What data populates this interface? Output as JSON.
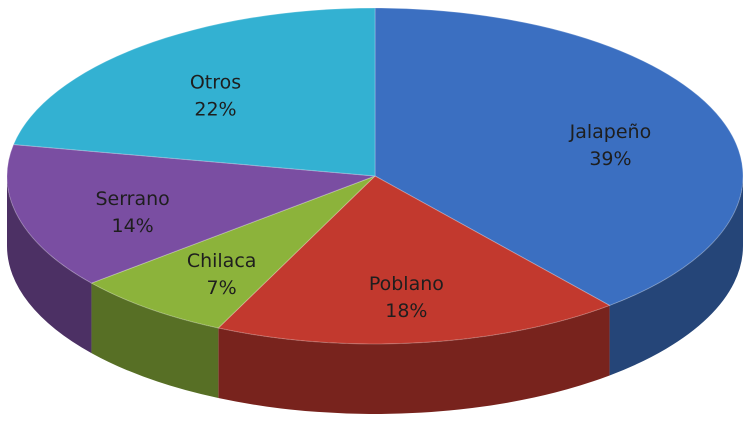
{
  "chart_data": {
    "type": "pie",
    "categories": [
      "Jalapeño",
      "Poblano",
      "Chilaca",
      "Serrano",
      "Otros"
    ],
    "values": [
      39,
      18,
      7,
      14,
      22
    ],
    "value_labels": [
      "39%",
      "18%",
      "7%",
      "14%",
      "22%"
    ],
    "colors": [
      "#3b6fc1",
      "#c2392e",
      "#8cb33b",
      "#7a4ea2",
      "#33b1d2"
    ]
  }
}
